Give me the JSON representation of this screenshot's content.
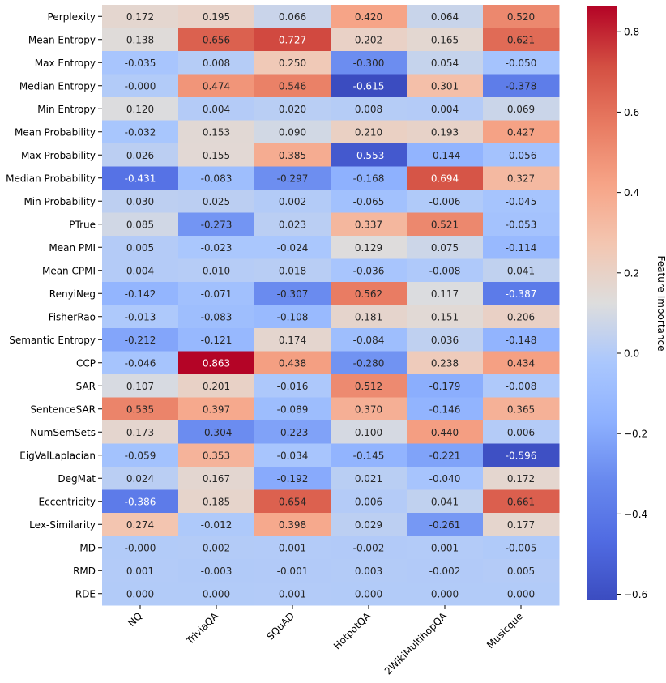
{
  "chart_data": {
    "type": "heatmap",
    "title": "",
    "xlabel": "",
    "ylabel": "",
    "columns": [
      "NQ",
      "TriviaQA",
      "SQuAD",
      "HotpotQA",
      "2WikiMultihopQA",
      "Musicque"
    ],
    "rows": [
      "Perplexity",
      "Mean Entropy",
      "Max Entropy",
      "Median Entropy",
      "Min Entropy",
      "Mean Probability",
      "Max Probability",
      "Median Probability",
      "Min Probability",
      "PTrue",
      "Mean PMI",
      "Mean CPMI",
      "RenyiNeg",
      "FisherRao",
      "Semantic Entropy",
      "CCP",
      "SAR",
      "SentenceSAR",
      "NumSemSets",
      "EigValLaplacian",
      "DegMat",
      "Eccentricity",
      "Lex-Similarity",
      "MD",
      "RMD",
      "RDE"
    ],
    "values": [
      [
        0.172,
        0.195,
        0.066,
        0.42,
        0.064,
        0.52
      ],
      [
        0.138,
        0.656,
        0.727,
        0.202,
        0.165,
        0.621
      ],
      [
        -0.035,
        0.008,
        0.25,
        -0.3,
        0.054,
        -0.05
      ],
      [
        -0.0,
        0.474,
        0.546,
        -0.615,
        0.301,
        -0.378
      ],
      [
        0.12,
        0.004,
        0.02,
        0.008,
        0.004,
        0.069
      ],
      [
        -0.032,
        0.153,
        0.09,
        0.21,
        0.193,
        0.427
      ],
      [
        0.026,
        0.155,
        0.385,
        -0.553,
        -0.144,
        -0.056
      ],
      [
        -0.431,
        -0.083,
        -0.297,
        -0.168,
        0.694,
        0.327
      ],
      [
        0.03,
        0.025,
        0.002,
        -0.065,
        -0.006,
        -0.045
      ],
      [
        0.085,
        -0.273,
        0.023,
        0.337,
        0.521,
        -0.053
      ],
      [
        0.005,
        -0.023,
        -0.024,
        0.129,
        0.075,
        -0.114
      ],
      [
        0.004,
        0.01,
        0.018,
        -0.036,
        -0.008,
        0.041
      ],
      [
        -0.142,
        -0.071,
        -0.307,
        0.562,
        0.117,
        -0.387
      ],
      [
        -0.013,
        -0.083,
        -0.108,
        0.181,
        0.151,
        0.206
      ],
      [
        -0.212,
        -0.121,
        0.174,
        -0.084,
        0.036,
        -0.148
      ],
      [
        -0.046,
        0.863,
        0.438,
        -0.28,
        0.238,
        0.434
      ],
      [
        0.107,
        0.201,
        -0.016,
        0.512,
        -0.179,
        -0.008
      ],
      [
        0.535,
        0.397,
        -0.089,
        0.37,
        -0.146,
        0.365
      ],
      [
        0.173,
        -0.304,
        -0.223,
        0.1,
        0.44,
        0.006
      ],
      [
        -0.059,
        0.353,
        -0.034,
        -0.145,
        -0.221,
        -0.596
      ],
      [
        0.024,
        0.167,
        -0.192,
        0.021,
        -0.04,
        0.172
      ],
      [
        -0.386,
        0.185,
        0.654,
        0.006,
        0.041,
        0.661
      ],
      [
        0.274,
        -0.012,
        0.398,
        0.029,
        -0.261,
        0.177
      ],
      [
        -0.0,
        0.002,
        0.001,
        -0.002,
        0.001,
        -0.005
      ],
      [
        0.001,
        -0.003,
        -0.001,
        0.003,
        -0.002,
        0.005
      ],
      [
        0.0,
        0.0,
        0.001,
        0.0,
        0.0,
        0.0
      ]
    ],
    "colormap": "coolwarm",
    "vmin": -0.615,
    "vmax": 0.863,
    "colorbar": {
      "label": "Feature Importance",
      "ticks": [
        0.8,
        0.6,
        0.4,
        0.2,
        0.0,
        -0.2,
        -0.4,
        -0.6
      ],
      "tick_labels": [
        "0.8",
        "0.6",
        "0.4",
        "0.2",
        "0.0",
        "−0.2",
        "−0.4",
        "−0.6"
      ]
    },
    "colors": {
      "cold": "#3b4cc0",
      "neutral": "#dddddd",
      "hot": "#b40426"
    }
  }
}
